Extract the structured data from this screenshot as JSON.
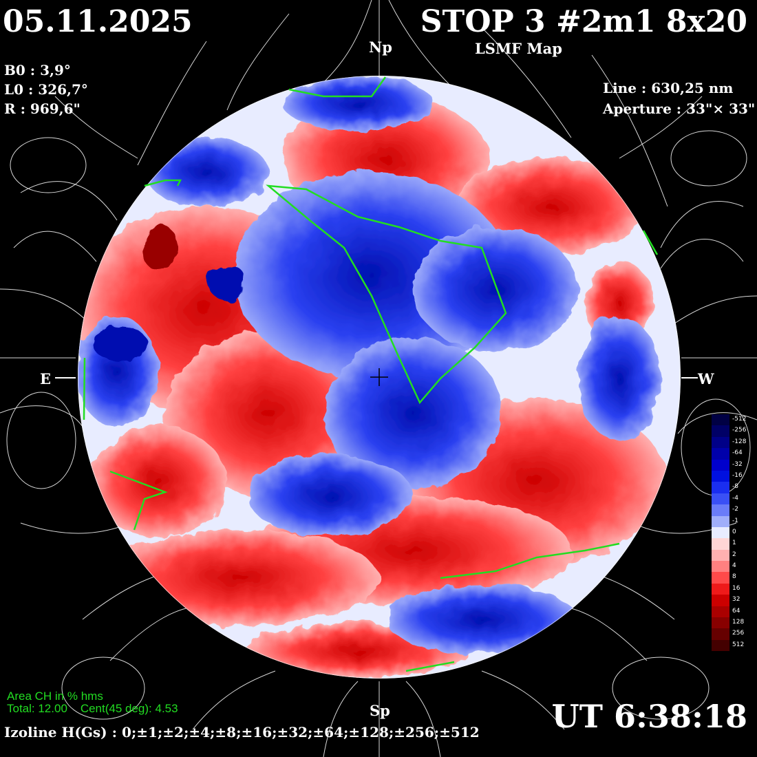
{
  "header": {
    "date": "05.11.2025",
    "title": "STOP 3 #2m1 8x20",
    "subtitle": "LSMF  Map"
  },
  "params": {
    "b0": "B0 : 3,9°",
    "l0": "L0 : 326,7°",
    "r": "R  : 969,6\""
  },
  "instrument": {
    "line": "Line :  630,25 nm",
    "aperture": "Aperture : 33\"× 33\""
  },
  "compass": {
    "north": "Np",
    "south": "Sp",
    "east": "E",
    "west": "W"
  },
  "coronal_holes": {
    "heading": "Area CH in % hms",
    "total_label": "Total: 12.00",
    "cent_label": "Cent(45 deg): 4.53"
  },
  "time": "UT 6:38:18",
  "isolines": "Izoline H(Gs) : 0;±1;±2;±4;±8;±16;±32;±64;±128;±256;±512",
  "colorbar": {
    "labels": [
      "-512",
      "-256",
      "-128",
      "-64",
      "-32",
      "-16",
      "-8",
      "-4",
      "-2",
      "-1",
      "0",
      "1",
      "2",
      "4",
      "8",
      "16",
      "32",
      "64",
      "128",
      "256",
      "512"
    ],
    "colors": [
      "#000044",
      "#000066",
      "#000088",
      "#0000aa",
      "#0000cc",
      "#0010e0",
      "#1a2ef0",
      "#3a50f5",
      "#6a7cf8",
      "#a0aefa",
      "#e8ecff",
      "#ffd6d6",
      "#ffb0b0",
      "#ff8080",
      "#ff4a4a",
      "#ee1a1a",
      "#cc0000",
      "#aa0000",
      "#880000",
      "#660000",
      "#440000"
    ]
  },
  "colors": {
    "positive": "#e82020",
    "negative": "#1e32e0",
    "neutral": "#ffffff",
    "coronal_hole_outline": "#22dd22"
  }
}
